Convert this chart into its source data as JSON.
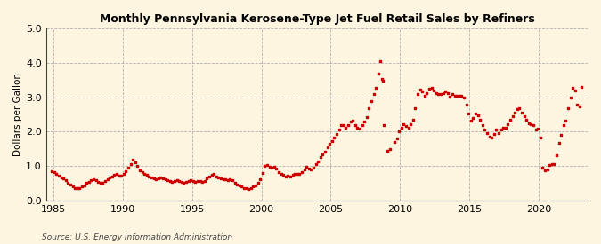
{
  "title": "Monthly Pennsylvania Kerosene-Type Jet Fuel Retail Sales by Refiners",
  "ylabel": "Dollars per Gallon",
  "source": "Source: U.S. Energy Information Administration",
  "background_color": "#fdf5e0",
  "dot_color": "#cc0000",
  "xlim": [
    1984.5,
    2023.5
  ],
  "ylim": [
    0.0,
    5.0
  ],
  "yticks": [
    0.0,
    1.0,
    2.0,
    3.0,
    4.0,
    5.0
  ],
  "xticks": [
    1985,
    1990,
    1995,
    2000,
    2005,
    2010,
    2015,
    2020
  ],
  "data": [
    [
      1984.917,
      0.86
    ],
    [
      1985.083,
      0.82
    ],
    [
      1985.25,
      0.78
    ],
    [
      1985.417,
      0.72
    ],
    [
      1985.583,
      0.67
    ],
    [
      1985.75,
      0.63
    ],
    [
      1985.917,
      0.58
    ],
    [
      1986.083,
      0.52
    ],
    [
      1986.25,
      0.45
    ],
    [
      1986.417,
      0.4
    ],
    [
      1986.583,
      0.36
    ],
    [
      1986.75,
      0.35
    ],
    [
      1986.917,
      0.37
    ],
    [
      1987.083,
      0.4
    ],
    [
      1987.25,
      0.44
    ],
    [
      1987.417,
      0.5
    ],
    [
      1987.583,
      0.54
    ],
    [
      1987.75,
      0.58
    ],
    [
      1987.917,
      0.62
    ],
    [
      1988.083,
      0.58
    ],
    [
      1988.25,
      0.53
    ],
    [
      1988.417,
      0.5
    ],
    [
      1988.583,
      0.52
    ],
    [
      1988.75,
      0.57
    ],
    [
      1988.917,
      0.62
    ],
    [
      1989.083,
      0.66
    ],
    [
      1989.25,
      0.7
    ],
    [
      1989.417,
      0.74
    ],
    [
      1989.583,
      0.78
    ],
    [
      1989.75,
      0.73
    ],
    [
      1989.917,
      0.71
    ],
    [
      1990.083,
      0.76
    ],
    [
      1990.25,
      0.85
    ],
    [
      1990.417,
      0.95
    ],
    [
      1990.583,
      1.05
    ],
    [
      1990.75,
      1.18
    ],
    [
      1990.917,
      1.1
    ],
    [
      1991.083,
      1.0
    ],
    [
      1991.25,
      0.88
    ],
    [
      1991.417,
      0.82
    ],
    [
      1991.583,
      0.78
    ],
    [
      1991.75,
      0.74
    ],
    [
      1991.917,
      0.7
    ],
    [
      1992.083,
      0.66
    ],
    [
      1992.25,
      0.63
    ],
    [
      1992.417,
      0.62
    ],
    [
      1992.583,
      0.64
    ],
    [
      1992.75,
      0.66
    ],
    [
      1992.917,
      0.64
    ],
    [
      1993.083,
      0.62
    ],
    [
      1993.25,
      0.59
    ],
    [
      1993.417,
      0.57
    ],
    [
      1993.583,
      0.55
    ],
    [
      1993.75,
      0.56
    ],
    [
      1993.917,
      0.58
    ],
    [
      1994.083,
      0.56
    ],
    [
      1994.25,
      0.53
    ],
    [
      1994.417,
      0.52
    ],
    [
      1994.583,
      0.53
    ],
    [
      1994.75,
      0.56
    ],
    [
      1994.917,
      0.58
    ],
    [
      1995.083,
      0.56
    ],
    [
      1995.25,
      0.55
    ],
    [
      1995.417,
      0.57
    ],
    [
      1995.583,
      0.56
    ],
    [
      1995.75,
      0.55
    ],
    [
      1995.917,
      0.57
    ],
    [
      1996.083,
      0.63
    ],
    [
      1996.25,
      0.7
    ],
    [
      1996.417,
      0.74
    ],
    [
      1996.583,
      0.76
    ],
    [
      1996.75,
      0.7
    ],
    [
      1996.917,
      0.66
    ],
    [
      1997.083,
      0.64
    ],
    [
      1997.25,
      0.62
    ],
    [
      1997.417,
      0.62
    ],
    [
      1997.583,
      0.6
    ],
    [
      1997.75,
      0.61
    ],
    [
      1997.917,
      0.59
    ],
    [
      1998.083,
      0.52
    ],
    [
      1998.25,
      0.47
    ],
    [
      1998.417,
      0.43
    ],
    [
      1998.583,
      0.4
    ],
    [
      1998.75,
      0.37
    ],
    [
      1998.917,
      0.35
    ],
    [
      1999.083,
      0.33
    ],
    [
      1999.25,
      0.35
    ],
    [
      1999.417,
      0.4
    ],
    [
      1999.583,
      0.44
    ],
    [
      1999.75,
      0.52
    ],
    [
      1999.917,
      0.62
    ],
    [
      2000.083,
      0.8
    ],
    [
      2000.25,
      1.0
    ],
    [
      2000.417,
      1.02
    ],
    [
      2000.583,
      0.97
    ],
    [
      2000.75,
      0.94
    ],
    [
      2000.917,
      0.97
    ],
    [
      2001.083,
      0.92
    ],
    [
      2001.25,
      0.82
    ],
    [
      2001.417,
      0.78
    ],
    [
      2001.583,
      0.74
    ],
    [
      2001.75,
      0.7
    ],
    [
      2001.917,
      0.72
    ],
    [
      2002.083,
      0.7
    ],
    [
      2002.25,
      0.74
    ],
    [
      2002.417,
      0.77
    ],
    [
      2002.583,
      0.78
    ],
    [
      2002.75,
      0.78
    ],
    [
      2002.917,
      0.82
    ],
    [
      2003.083,
      0.9
    ],
    [
      2003.25,
      0.97
    ],
    [
      2003.417,
      0.93
    ],
    [
      2003.583,
      0.91
    ],
    [
      2003.75,
      0.96
    ],
    [
      2003.917,
      1.05
    ],
    [
      2004.083,
      1.13
    ],
    [
      2004.25,
      1.25
    ],
    [
      2004.417,
      1.35
    ],
    [
      2004.583,
      1.42
    ],
    [
      2004.75,
      1.55
    ],
    [
      2004.917,
      1.64
    ],
    [
      2005.083,
      1.72
    ],
    [
      2005.25,
      1.83
    ],
    [
      2005.417,
      1.94
    ],
    [
      2005.583,
      2.05
    ],
    [
      2005.75,
      2.18
    ],
    [
      2005.917,
      2.2
    ],
    [
      2006.083,
      2.12
    ],
    [
      2006.25,
      2.2
    ],
    [
      2006.417,
      2.28
    ],
    [
      2006.583,
      2.32
    ],
    [
      2006.75,
      2.2
    ],
    [
      2006.917,
      2.1
    ],
    [
      2007.083,
      2.08
    ],
    [
      2007.25,
      2.2
    ],
    [
      2007.417,
      2.28
    ],
    [
      2007.583,
      2.42
    ],
    [
      2007.75,
      2.68
    ],
    [
      2007.917,
      2.88
    ],
    [
      2008.083,
      3.08
    ],
    [
      2008.25,
      3.28
    ],
    [
      2008.417,
      3.68
    ],
    [
      2008.583,
      4.05
    ],
    [
      2008.667,
      3.52
    ],
    [
      2008.75,
      3.48
    ],
    [
      2008.833,
      2.2
    ],
    [
      2009.083,
      1.45
    ],
    [
      2009.25,
      1.48
    ],
    [
      2009.583,
      1.7
    ],
    [
      2009.75,
      1.8
    ],
    [
      2009.917,
      2.0
    ],
    [
      2010.083,
      2.12
    ],
    [
      2010.25,
      2.22
    ],
    [
      2010.417,
      2.15
    ],
    [
      2010.583,
      2.12
    ],
    [
      2010.75,
      2.22
    ],
    [
      2010.917,
      2.35
    ],
    [
      2011.083,
      2.68
    ],
    [
      2011.25,
      3.1
    ],
    [
      2011.417,
      3.22
    ],
    [
      2011.583,
      3.18
    ],
    [
      2011.75,
      3.05
    ],
    [
      2011.917,
      3.12
    ],
    [
      2012.083,
      3.25
    ],
    [
      2012.25,
      3.28
    ],
    [
      2012.417,
      3.2
    ],
    [
      2012.583,
      3.12
    ],
    [
      2012.75,
      3.08
    ],
    [
      2012.917,
      3.1
    ],
    [
      2013.083,
      3.12
    ],
    [
      2013.25,
      3.18
    ],
    [
      2013.417,
      3.12
    ],
    [
      2013.583,
      3.02
    ],
    [
      2013.75,
      3.08
    ],
    [
      2013.917,
      3.05
    ],
    [
      2014.083,
      3.05
    ],
    [
      2014.25,
      3.05
    ],
    [
      2014.417,
      3.05
    ],
    [
      2014.583,
      3.0
    ],
    [
      2014.75,
      2.78
    ],
    [
      2014.917,
      2.52
    ],
    [
      2015.083,
      2.32
    ],
    [
      2015.25,
      2.4
    ],
    [
      2015.417,
      2.52
    ],
    [
      2015.583,
      2.48
    ],
    [
      2015.75,
      2.35
    ],
    [
      2015.917,
      2.2
    ],
    [
      2016.083,
      2.05
    ],
    [
      2016.25,
      1.95
    ],
    [
      2016.417,
      1.85
    ],
    [
      2016.583,
      1.82
    ],
    [
      2016.75,
      1.94
    ],
    [
      2016.917,
      2.05
    ],
    [
      2017.083,
      1.95
    ],
    [
      2017.25,
      2.05
    ],
    [
      2017.417,
      2.12
    ],
    [
      2017.583,
      2.1
    ],
    [
      2017.75,
      2.22
    ],
    [
      2017.917,
      2.35
    ],
    [
      2018.083,
      2.44
    ],
    [
      2018.25,
      2.55
    ],
    [
      2018.417,
      2.64
    ],
    [
      2018.583,
      2.68
    ],
    [
      2018.75,
      2.55
    ],
    [
      2018.917,
      2.45
    ],
    [
      2019.083,
      2.35
    ],
    [
      2019.25,
      2.24
    ],
    [
      2019.417,
      2.22
    ],
    [
      2019.583,
      2.18
    ],
    [
      2019.75,
      2.05
    ],
    [
      2019.917,
      2.08
    ],
    [
      2020.083,
      1.82
    ],
    [
      2020.25,
      0.95
    ],
    [
      2020.417,
      0.88
    ],
    [
      2020.583,
      0.9
    ],
    [
      2020.75,
      1.02
    ],
    [
      2020.917,
      1.05
    ],
    [
      2021.083,
      1.05
    ],
    [
      2021.25,
      1.3
    ],
    [
      2021.417,
      1.68
    ],
    [
      2021.583,
      1.9
    ],
    [
      2021.75,
      2.18
    ],
    [
      2021.917,
      2.32
    ],
    [
      2022.083,
      2.68
    ],
    [
      2022.25,
      3.0
    ],
    [
      2022.417,
      3.28
    ],
    [
      2022.583,
      3.2
    ],
    [
      2022.75,
      2.78
    ],
    [
      2022.917,
      2.72
    ],
    [
      2023.083,
      3.3
    ]
  ]
}
